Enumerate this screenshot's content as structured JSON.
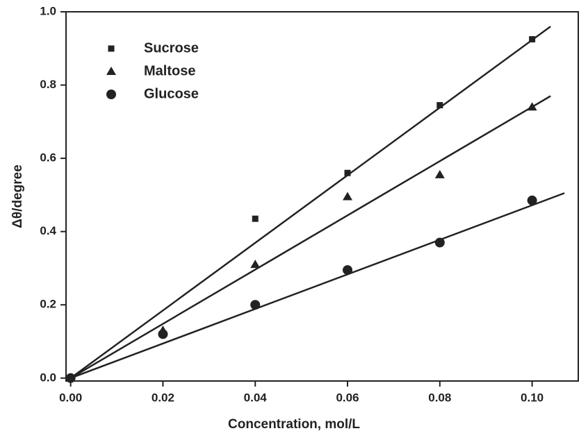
{
  "chart_data": {
    "type": "scatter",
    "x_label": "Concentration, mol/L",
    "y_label": "Δθ/degree",
    "x": [
      0,
      0.02,
      0.04,
      0.06,
      0.08,
      0.1
    ],
    "series": [
      {
        "name": "Sucrose",
        "marker": "square",
        "color": "#222222",
        "values": [
          0,
          null,
          0.435,
          0.56,
          0.745,
          0.925
        ],
        "fit_x": [
          0,
          0.104
        ],
        "fit_values": [
          0,
          0.96
        ]
      },
      {
        "name": "Maltose",
        "marker": "triangle",
        "color": "#222222",
        "values": [
          0,
          0.13,
          0.31,
          0.495,
          0.555,
          0.74
        ],
        "fit_x": [
          0,
          0.104
        ],
        "fit_values": [
          0,
          0.77
        ]
      },
      {
        "name": "Glucose",
        "marker": "circle",
        "color": "#222222",
        "values": [
          0,
          0.12,
          0.2,
          0.295,
          0.37,
          0.485
        ],
        "fit_x": [
          0,
          0.107
        ],
        "fit_values": [
          0,
          0.505
        ]
      }
    ],
    "xlim": [
      -0.001,
      0.11
    ],
    "ylim": [
      -0.008,
      1.0
    ],
    "xticks": [
      {
        "value": 0,
        "label": "0.00"
      },
      {
        "value": 0.02,
        "label": "0.02"
      },
      {
        "value": 0.04,
        "label": "0.04"
      },
      {
        "value": 0.06,
        "label": "0.06"
      },
      {
        "value": 0.08,
        "label": "0.08"
      },
      {
        "value": 0.1,
        "label": "0.10"
      }
    ],
    "yticks": [
      {
        "value": 0,
        "label": "0.0"
      },
      0.2,
      0.4,
      0.6,
      0.8,
      {
        "value": 1,
        "label": "1.0"
      }
    ],
    "legend": "upper-left",
    "grid": false
  }
}
